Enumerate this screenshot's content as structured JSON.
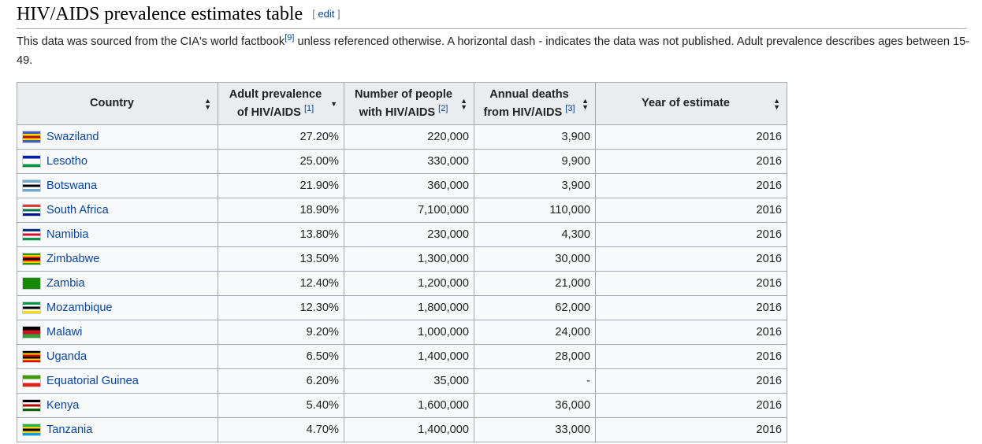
{
  "heading": {
    "title": "HIV/AIDS prevalence estimates table",
    "edit_open": "[ ",
    "edit": "edit",
    "edit_close": " ]"
  },
  "intro": {
    "part1": "This data was sourced from the CIA's world factbook",
    "ref": "[9]",
    "part2": " unless referenced otherwise. A horizontal dash - indicates the data was not published. Adult prevalence describes ages between 15-49."
  },
  "table": {
    "headers": {
      "country": "Country",
      "prevalence_1": "Adult prevalence",
      "prevalence_2": "of HIV/AIDS",
      "prevalence_ref": "[1]",
      "people_1": "Number of people",
      "people_2": "with HIV/AIDS",
      "people_ref": "[2]",
      "deaths_1": "Annual deaths",
      "deaths_2": "from HIV/AIDS",
      "deaths_ref": "[3]",
      "year": "Year of estimate"
    },
    "rows": [
      {
        "country": "Swaziland",
        "prevalence": "27.20%",
        "people": "220,000",
        "deaths": "3,900",
        "year": "2016",
        "flag_colors": [
          "#3e5eb9",
          "#ffd900",
          "#b10c0c",
          "#ffd900",
          "#3e5eb9"
        ]
      },
      {
        "country": "Lesotho",
        "prevalence": "25.00%",
        "people": "330,000",
        "deaths": "9,900",
        "year": "2016",
        "flag_colors": [
          "#00209f",
          "#ffffff",
          "#ffffff",
          "#009543"
        ]
      },
      {
        "country": "Botswana",
        "prevalence": "21.90%",
        "people": "360,000",
        "deaths": "3,900",
        "year": "2016",
        "flag_colors": [
          "#6da9d2",
          "#ffffff",
          "#000000",
          "#ffffff",
          "#6da9d2"
        ]
      },
      {
        "country": "South Africa",
        "prevalence": "18.90%",
        "people": "7,100,000",
        "deaths": "110,000",
        "year": "2016",
        "flag_colors": [
          "#e03c31",
          "#ffffff",
          "#007749",
          "#ffffff",
          "#001489"
        ]
      },
      {
        "country": "Namibia",
        "prevalence": "13.80%",
        "people": "230,000",
        "deaths": "4,300",
        "year": "2016",
        "flag_colors": [
          "#003580",
          "#ffffff",
          "#d21034",
          "#ffffff",
          "#009543"
        ]
      },
      {
        "country": "Zimbabwe",
        "prevalence": "13.50%",
        "people": "1,300,000",
        "deaths": "30,000",
        "year": "2016",
        "flag_colors": [
          "#319208",
          "#ffd200",
          "#de2010",
          "#000000",
          "#de2010",
          "#ffd200",
          "#319208"
        ]
      },
      {
        "country": "Zambia",
        "prevalence": "12.40%",
        "people": "1,200,000",
        "deaths": "21,000",
        "year": "2016",
        "flag_colors": [
          "#198a00",
          "#198a00",
          "#198a00",
          "#198a00"
        ]
      },
      {
        "country": "Mozambique",
        "prevalence": "12.30%",
        "people": "1,800,000",
        "deaths": "62,000",
        "year": "2016",
        "flag_colors": [
          "#009a44",
          "#ffffff",
          "#000000",
          "#ffffff",
          "#fce100"
        ]
      },
      {
        "country": "Malawi",
        "prevalence": "9.20%",
        "people": "1,000,000",
        "deaths": "24,000",
        "year": "2016",
        "flag_colors": [
          "#000000",
          "#ce1126",
          "#339e35"
        ]
      },
      {
        "country": "Uganda",
        "prevalence": "6.50%",
        "people": "1,400,000",
        "deaths": "28,000",
        "year": "2016",
        "flag_colors": [
          "#000000",
          "#fcdc04",
          "#d90000",
          "#000000",
          "#fcdc04",
          "#d90000"
        ]
      },
      {
        "country": "Equatorial Guinea",
        "prevalence": "6.20%",
        "people": "35,000",
        "deaths": "-",
        "year": "2016",
        "flag_colors": [
          "#3e9a00",
          "#ffffff",
          "#e32118"
        ]
      },
      {
        "country": "Kenya",
        "prevalence": "5.40%",
        "people": "1,600,000",
        "deaths": "36,000",
        "year": "2016",
        "flag_colors": [
          "#000000",
          "#ffffff",
          "#bb0000",
          "#ffffff",
          "#006600"
        ]
      },
      {
        "country": "Tanzania",
        "prevalence": "4.70%",
        "people": "1,400,000",
        "deaths": "33,000",
        "year": "2016",
        "flag_colors": [
          "#1eb53a",
          "#fcd116",
          "#000000",
          "#fcd116",
          "#00a3dd"
        ]
      }
    ]
  }
}
